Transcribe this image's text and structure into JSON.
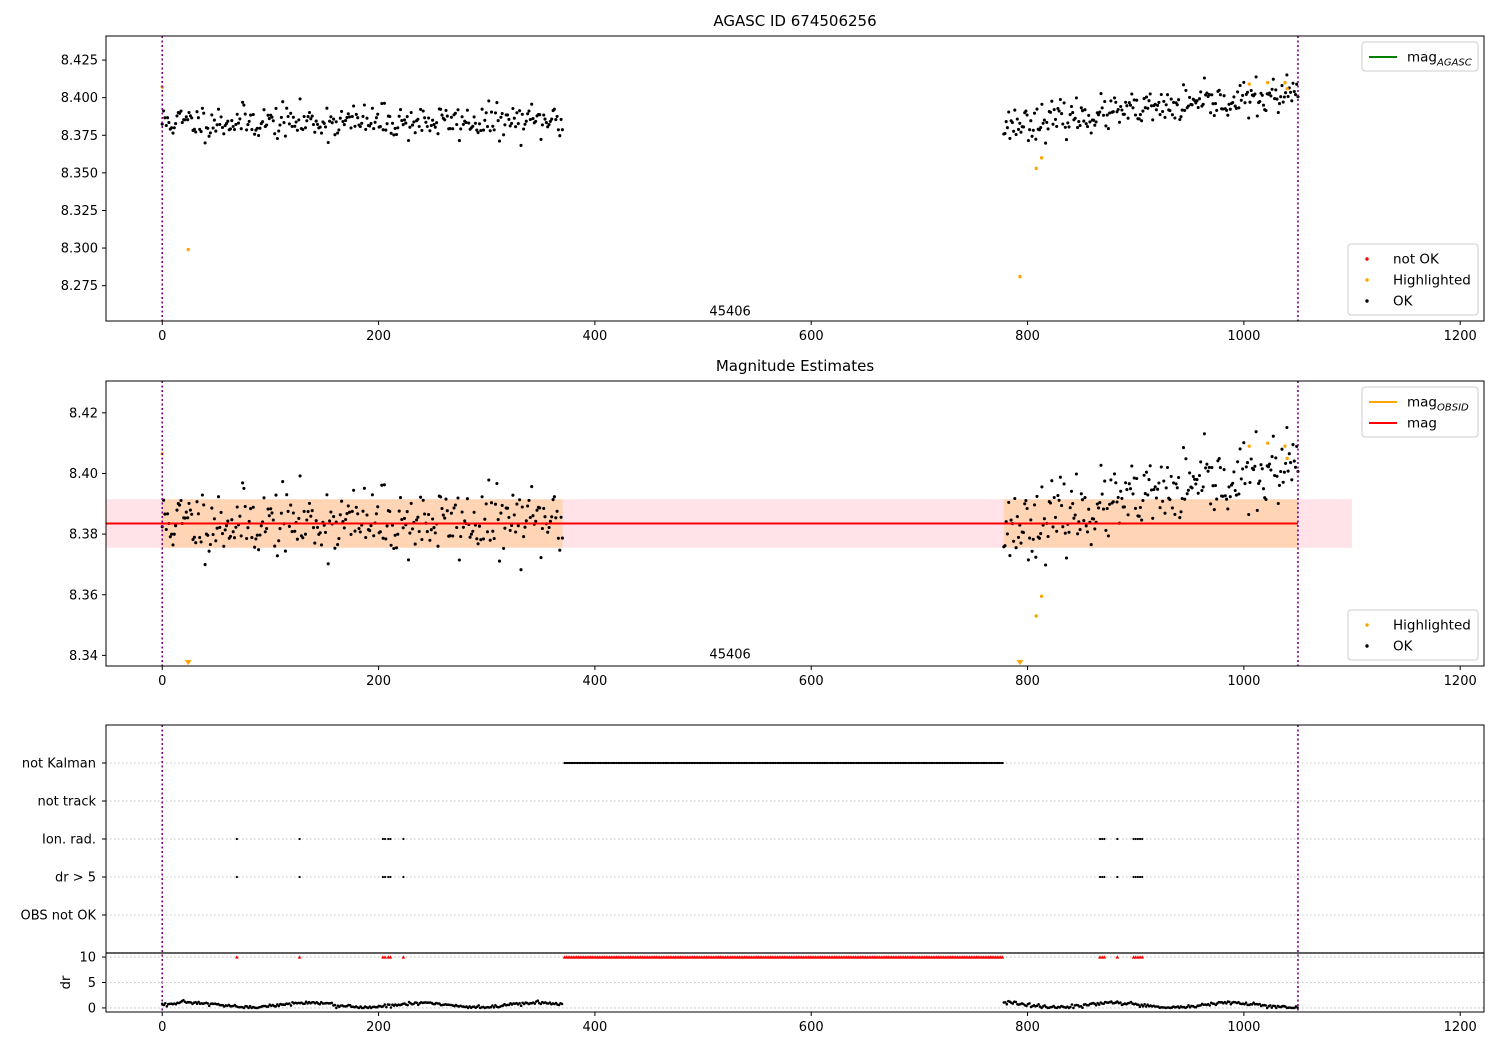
{
  "figure": {
    "panels": [
      "panel1",
      "panel2",
      "panel3"
    ]
  },
  "chart_data": [
    {
      "id": "panel1",
      "type": "scatter",
      "title": "AGASC ID 674506256",
      "xlim": [
        -52,
        1222
      ],
      "ylim": [
        8.2515,
        8.441
      ],
      "xticks": [
        0,
        200,
        400,
        600,
        800,
        1000,
        1200
      ],
      "yticks": [
        8.275,
        8.3,
        8.325,
        8.35,
        8.375,
        8.4,
        8.425
      ],
      "ytick_decimals": 3,
      "grid": false,
      "vlines": [
        0,
        1050
      ],
      "vline_color": "#800080",
      "annotation": {
        "text": "45406",
        "x": 525,
        "y": 8.255
      },
      "segments": [
        {
          "x_start": 0,
          "x_end": 370,
          "n": 300,
          "center": 8.384,
          "spread": 0.009,
          "seed": 11
        },
        {
          "x_start": 778,
          "x_end": 1050,
          "n": 240,
          "center": 8.382,
          "spread": 0.009,
          "seed": 23,
          "slope": 7.5e-05
        }
      ],
      "highlighted_points": [
        [
          0,
          8.407
        ],
        [
          24,
          8.299
        ],
        [
          793,
          8.281
        ],
        [
          808,
          8.353
        ],
        [
          813,
          8.36
        ],
        [
          1005,
          8.409
        ],
        [
          1022,
          8.41
        ],
        [
          1038,
          8.41
        ],
        [
          1040,
          8.406
        ]
      ],
      "colors": {
        "ok": "#000000",
        "highlighted": "#ffa500",
        "not_ok": "#ff0000",
        "mag_agasc": "#008000"
      },
      "legends": [
        {
          "position": "upper-right",
          "entries": [
            {
              "label": "mag",
              "subscript": "AGASC",
              "kind": "line",
              "color": "#008000"
            }
          ]
        },
        {
          "position": "lower-right",
          "entries": [
            {
              "label": "not OK",
              "kind": "dot",
              "color": "#ff0000"
            },
            {
              "label": "Highlighted",
              "kind": "dot",
              "color": "#ffa500"
            },
            {
              "label": "OK",
              "kind": "dot",
              "color": "#000000"
            }
          ]
        }
      ]
    },
    {
      "id": "panel2",
      "type": "scatter",
      "title": "Magnitude Estimates",
      "xlim": [
        -52,
        1222
      ],
      "ylim": [
        8.3365,
        8.4305
      ],
      "xticks": [
        0,
        200,
        400,
        600,
        800,
        1000,
        1200
      ],
      "yticks": [
        8.34,
        8.36,
        8.38,
        8.4,
        8.42
      ],
      "ytick_decimals": 2,
      "grid": false,
      "vlines": [
        0,
        1050
      ],
      "vline_color": "#800080",
      "annotation": {
        "text": "45406",
        "x": 525,
        "y": 8.339
      },
      "mag_line": {
        "value": 8.3835,
        "x_start": -52,
        "x_end": 1050,
        "color": "#ff0000"
      },
      "mag_band": {
        "low": 8.3755,
        "high": 8.3915,
        "x_start": -52,
        "x_end": 1100,
        "color": "#ffc0cb"
      },
      "mag_obsid_band": {
        "low": 8.3755,
        "high": 8.3915,
        "ranges": [
          [
            0,
            370
          ],
          [
            778,
            1050
          ]
        ],
        "color": "#ffa500"
      },
      "segments": [
        {
          "x_start": 0,
          "x_end": 370,
          "n": 300,
          "center": 8.384,
          "spread": 0.009,
          "seed": 11
        },
        {
          "x_start": 778,
          "x_end": 1050,
          "n": 240,
          "center": 8.382,
          "spread": 0.009,
          "seed": 23,
          "slope": 7.5e-05
        }
      ],
      "highlighted_points": [
        [
          0,
          8.4065
        ],
        [
          808,
          8.353
        ],
        [
          813,
          8.3595
        ],
        [
          1005,
          8.409
        ],
        [
          1022,
          8.41
        ],
        [
          1038,
          8.409
        ],
        [
          1040,
          8.405
        ]
      ],
      "below_markers": [
        24,
        793
      ],
      "colors": {
        "ok": "#000000",
        "highlighted": "#ffa500"
      },
      "legends": [
        {
          "position": "upper-right",
          "entries": [
            {
              "label": "mag",
              "subscript": "OBSID",
              "kind": "line",
              "color": "#ffa500"
            },
            {
              "label": "mag",
              "kind": "line",
              "color": "#ff0000"
            }
          ]
        },
        {
          "position": "lower-right",
          "entries": [
            {
              "label": "Highlighted",
              "kind": "dot",
              "color": "#ffa500"
            },
            {
              "label": "OK",
              "kind": "dot",
              "color": "#000000"
            }
          ]
        }
      ]
    },
    {
      "id": "panel3",
      "type": "scatter",
      "xlim": [
        -52,
        1222
      ],
      "xticks": [
        0,
        200,
        400,
        600,
        800,
        1000,
        1200
      ],
      "vlines": [
        0,
        1050
      ],
      "vline_color": "#800080",
      "flags": [
        {
          "label": "not Kalman",
          "ranges": [
            [
              372,
              778
            ]
          ],
          "points": []
        },
        {
          "label": "not track",
          "ranges": [],
          "points": []
        },
        {
          "label": "Ion. rad.",
          "ranges": [],
          "points": [
            69,
            127,
            204,
            206,
            209,
            211,
            223,
            867,
            869,
            871,
            883,
            898,
            900,
            902,
            904,
            906
          ]
        },
        {
          "label": "dr > 5",
          "ranges": [],
          "points": [
            69,
            127,
            204,
            206,
            209,
            211,
            223,
            867,
            869,
            871,
            883,
            898,
            900,
            902,
            904,
            906
          ]
        },
        {
          "label": "OBS not OK",
          "ranges": [],
          "points": []
        }
      ],
      "dr": {
        "ylabel": "dr",
        "yticks": [
          0,
          5,
          10
        ],
        "ylim": [
          -0.8,
          10.8
        ],
        "clip_value": 10,
        "clip_color": "#ff0000",
        "clipped_ranges": [
          [
            372,
            778
          ]
        ],
        "clipped_points": [
          69,
          127,
          204,
          206,
          209,
          211,
          223,
          867,
          869,
          871,
          883,
          898,
          900,
          902,
          904,
          906
        ],
        "segments": [
          [
            0,
            370
          ],
          [
            778,
            1050
          ]
        ]
      }
    }
  ]
}
